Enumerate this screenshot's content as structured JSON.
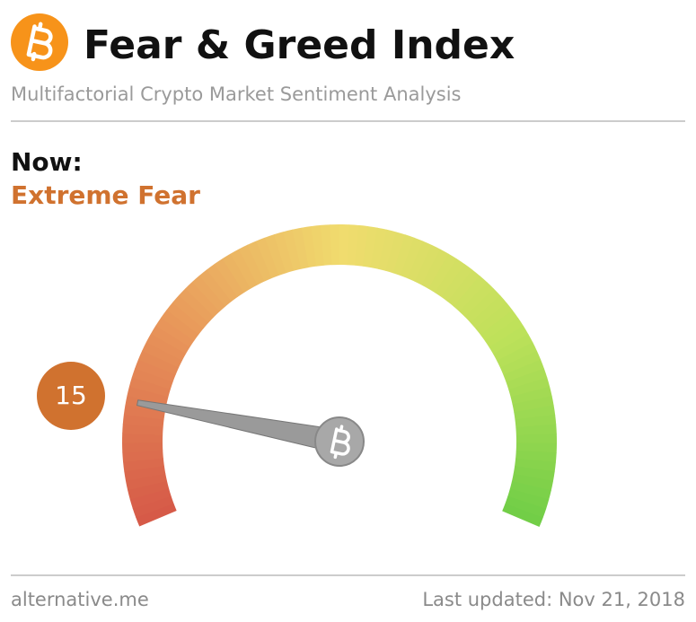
{
  "chart_data": {
    "type": "gauge",
    "title": "Fear & Greed Index",
    "subtitle": "Multifactorial Crypto Market Sentiment Analysis",
    "now_label": "Now:",
    "classification": "Extreme Fear",
    "value": 15,
    "ylim": [
      0,
      100
    ],
    "color": "#d0722f",
    "source": "alternative.me",
    "updated": "Last updated: Nov 21, 2018"
  }
}
